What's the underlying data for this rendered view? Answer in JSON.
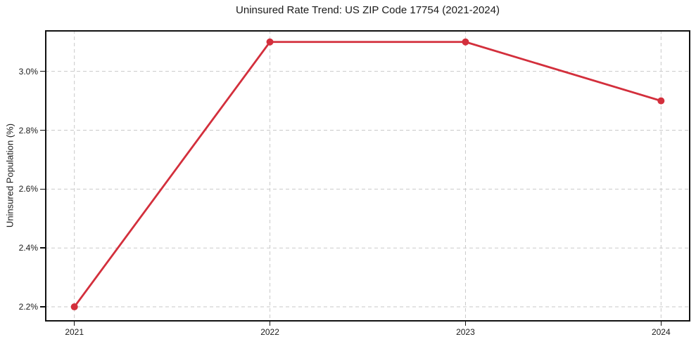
{
  "chart_data": {
    "type": "line",
    "title": "Uninsured Rate Trend: US ZIP Code 17754 (2021-2024)",
    "xlabel": "",
    "ylabel": "Uninsured Population (%)",
    "x": [
      2021,
      2022,
      2023,
      2024
    ],
    "series": [
      {
        "name": "Uninsured rate",
        "values": [
          2.2,
          3.1,
          3.1,
          2.9
        ],
        "color": "#d32f3c",
        "marker": "circle"
      }
    ],
    "xticks": [
      {
        "value": 2021,
        "label": "2021"
      },
      {
        "value": 2022,
        "label": "2022"
      },
      {
        "value": 2023,
        "label": "2023"
      },
      {
        "value": 2024,
        "label": "2024"
      }
    ],
    "yticks": [
      {
        "value": 2.2,
        "label": "2.2%"
      },
      {
        "value": 2.4,
        "label": "2.4%"
      },
      {
        "value": 2.6,
        "label": "2.6%"
      },
      {
        "value": 2.8,
        "label": "2.8%"
      },
      {
        "value": 3.0,
        "label": "3.0%"
      }
    ],
    "xlim": [
      2020.85,
      2024.15
    ],
    "ylim": [
      2.15,
      3.14
    ],
    "grid": true,
    "grid_style": "dashed",
    "legend": "none"
  },
  "colors": {
    "line": "#d32f3c",
    "grid": "#c9c9c9",
    "frame": "#111111",
    "text": "#1a1a1a",
    "background": "#ffffff"
  }
}
